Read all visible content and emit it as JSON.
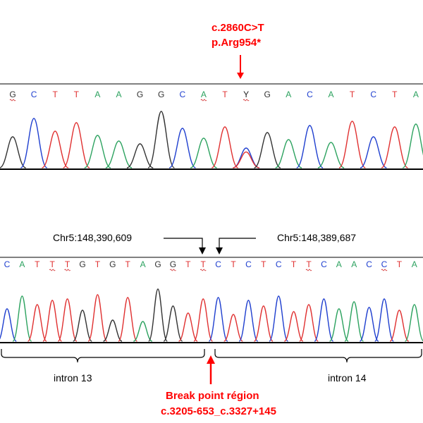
{
  "variant": {
    "cdna": "c.2860C>T",
    "protein": "p.Arg954*"
  },
  "top_trace": {
    "sequence": [
      "G",
      "C",
      "T",
      "T",
      "A",
      "A",
      "G",
      "G",
      "C",
      "A",
      "T",
      "Y",
      "G",
      "A",
      "C",
      "A",
      "T",
      "C",
      "T",
      "A"
    ],
    "underlined": [
      0,
      9,
      11
    ]
  },
  "bottom_trace": {
    "sequence": [
      "C",
      "A",
      "T",
      "T",
      "T",
      "G",
      "T",
      "G",
      "T",
      "A",
      "G",
      "G",
      "T",
      "T",
      "C",
      "T",
      "C",
      "T",
      "C",
      "T",
      "T",
      "C",
      "A",
      "A",
      "C",
      "C",
      "T",
      "A"
    ],
    "underlined": [
      3,
      4,
      11,
      13,
      20,
      25
    ]
  },
  "coordinates": {
    "left": "Chr5:148,390,609",
    "right": "Chr5:148,389,687"
  },
  "regions": {
    "left": "intron 13",
    "right": "intron 14"
  },
  "breakpoint": {
    "title": "Break point région",
    "notation": "c.3205-653_c.3327+145"
  },
  "colors": {
    "A": "#2ca25f",
    "C": "#1f3fcf",
    "G": "#333333",
    "T": "#e03030",
    "Y": "#222222",
    "annotation": "#ff0000",
    "baseline": "#000000"
  }
}
